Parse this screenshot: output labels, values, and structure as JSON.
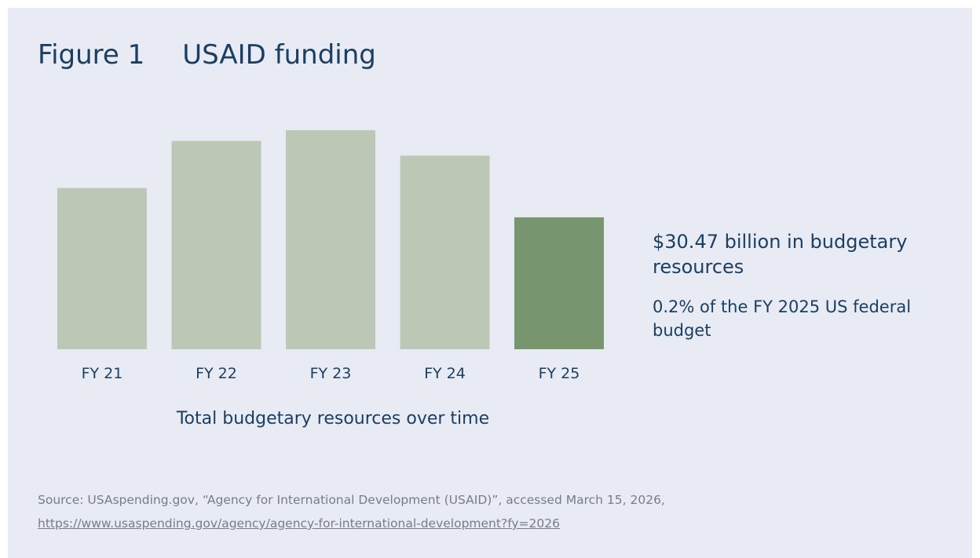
{
  "figure": {
    "label": "Figure 1",
    "title": "USAID funding"
  },
  "chart_data": {
    "type": "bar",
    "categories": [
      "FY 21",
      "FY 22",
      "FY 23",
      "FY 24",
      "FY 25"
    ],
    "values": [
      209,
      270,
      284,
      251,
      171
    ],
    "highlight_index": 4,
    "xlabel": "Total budgetary resources over time",
    "ylabel": "",
    "ylim": [
      0,
      290
    ],
    "grid": false,
    "value_axis_shown": false,
    "colors": {
      "bar": "#bcc7b6",
      "highlight": "#77966f",
      "text": "#1b3f63"
    }
  },
  "stats": {
    "headline": "$30.47 billion in budgetary resources",
    "subline": "0.2% of the FY 2025 US federal budget"
  },
  "source": {
    "text": "Source: USAspending.gov, “Agency for International Development (USAID)”, accessed March 15, 2026,",
    "link": "https://www.usaspending.gov/agency/agency-for-international-development?fy=2026"
  },
  "colors": {
    "background": "#e8ebf3",
    "title": "#1b3f63",
    "source": "#757d89"
  }
}
